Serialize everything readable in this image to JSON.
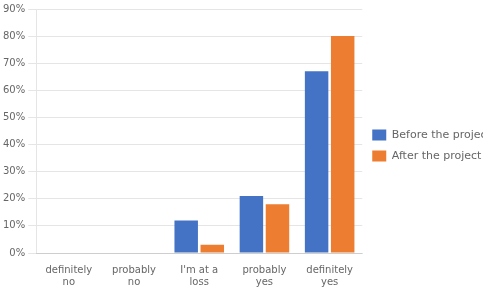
{
  "chart_data": {
    "type": "bar",
    "categories": [
      "definitely\nno",
      "probably\nno",
      "I'm at a\nloss",
      "probably\nyes",
      "definitely\nyes"
    ],
    "series": [
      {
        "name": "Before the project",
        "color": "#4472C4",
        "values": [
          0,
          0,
          12,
          21,
          67
        ]
      },
      {
        "name": "After the project",
        "color": "#ED7D31",
        "values": [
          0,
          0,
          3,
          18,
          80
        ]
      }
    ],
    "ylim": [
      0,
      90
    ],
    "yticks": [
      {
        "value": 0,
        "label": "0%"
      },
      {
        "value": 10,
        "label": "10%"
      },
      {
        "value": 20,
        "label": "20%"
      },
      {
        "value": 30,
        "label": "30%"
      },
      {
        "value": 40,
        "label": "40%"
      },
      {
        "value": 50,
        "label": "50%"
      },
      {
        "value": 60,
        "label": "60%"
      },
      {
        "value": 70,
        "label": "70%"
      },
      {
        "value": 80,
        "label": "80%"
      },
      {
        "value": 90,
        "label": "90%"
      }
    ],
    "grid": true,
    "legend": "right"
  }
}
